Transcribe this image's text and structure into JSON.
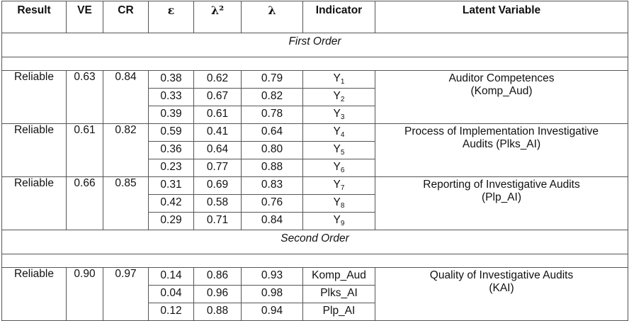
{
  "headers": [
    "Result",
    "VE",
    "CR",
    "ε",
    "λ²",
    "λ",
    "Indicator",
    "Latent Variable"
  ],
  "sections": [
    {
      "label": "First Order",
      "groups": [
        {
          "result": "Reliable",
          "ve": "0.63",
          "cr": "0.84",
          "latent_line1": "Auditor Competences",
          "latent_line2": "(Komp_Aud)",
          "rows": [
            {
              "e": "0.38",
              "l2": "0.62",
              "l": "0.79",
              "ind": "Y",
              "sub": "1"
            },
            {
              "e": "0.33",
              "l2": "0.67",
              "l": "0.82",
              "ind": "Y",
              "sub": "2"
            },
            {
              "e": "0.39",
              "l2": "0.61",
              "l": "0.78",
              "ind": "Y",
              "sub": "3"
            }
          ]
        },
        {
          "result": "Reliable",
          "ve": "0.61",
          "cr": "0.82",
          "latent_line1": "Process of Implementation Investigative",
          "latent_line2": "Audits (Plks_AI)",
          "rows": [
            {
              "e": "0.59",
              "l2": "0.41",
              "l": "0.64",
              "ind": "Y",
              "sub": "4"
            },
            {
              "e": "0.36",
              "l2": "0.64",
              "l": "0.80",
              "ind": "Y",
              "sub": "5"
            },
            {
              "e": "0.23",
              "l2": "0.77",
              "l": "0.88",
              "ind": "Y",
              "sub": "6"
            }
          ]
        },
        {
          "result": "Reliable",
          "ve": "0.66",
          "cr": "0.85",
          "latent_line1": "Reporting of Investigative Audits",
          "latent_line2": "(Plp_AI)",
          "rows": [
            {
              "e": "0.31",
              "l2": "0.69",
              "l": "0.83",
              "ind": "Y",
              "sub": "7"
            },
            {
              "e": "0.42",
              "l2": "0.58",
              "l": "0.76",
              "ind": "Y",
              "sub": "8"
            },
            {
              "e": "0.29",
              "l2": "0.71",
              "l": "0.84",
              "ind": "Y",
              "sub": "9"
            }
          ]
        }
      ]
    },
    {
      "label": "Second Order",
      "groups": [
        {
          "result": "Reliable",
          "ve": "0.90",
          "cr": "0.97",
          "latent_line1": "Quality of Investigative Audits",
          "latent_line2": "(KAI)",
          "rows": [
            {
              "e": "0.14",
              "l2": "0.86",
              "l": "0.93",
              "ind": "Komp_Aud",
              "sub": ""
            },
            {
              "e": "0.04",
              "l2": "0.96",
              "l": "0.98",
              "ind": "Plks_AI",
              "sub": ""
            },
            {
              "e": "0.12",
              "l2": "0.88",
              "l": "0.94",
              "ind": "Plp_AI",
              "sub": ""
            }
          ]
        }
      ]
    }
  ]
}
